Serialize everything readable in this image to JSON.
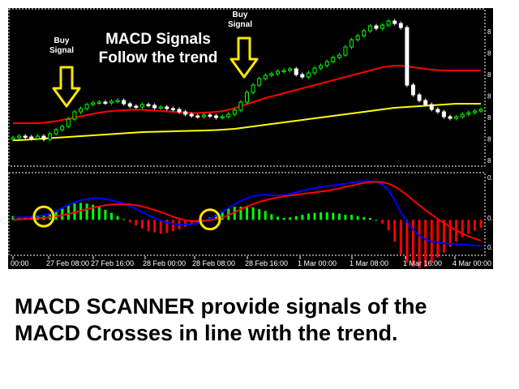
{
  "annotations": {
    "buy_signal_1": [
      "Buy",
      "Signal"
    ],
    "buy_signal_2": [
      "Buy",
      "Signal"
    ],
    "headline": [
      "MACD Signals",
      "Follow the trend"
    ]
  },
  "caption": [
    "MACD SCANNER provide signals of the",
    "MACD Crosses in line with the trend."
  ],
  "time_axis": [
    "00:00",
    "27 Feb 08:00",
    "27 Feb 16:00",
    "28 Feb 00:00",
    "28 Feb 08:00",
    "28 Feb 16:00",
    "1 Mar 00:00",
    "1 Mar 08:00",
    "1 Mar 16:00",
    "4 Mar 00:00"
  ],
  "price_axis": [
    "8",
    "8",
    "8",
    "8",
    "8",
    "8",
    "8"
  ],
  "macd_axis": [
    "0.",
    "0.",
    "0."
  ],
  "colors": {
    "background": "#000000",
    "bull_candle": "#00ff00",
    "bear_candle": "#ffffff",
    "ma_fast": "#ff0000",
    "ma_slow": "#ffff00",
    "macd_line": "#0000ff",
    "signal_line": "#ff0000",
    "hist_positive": "#00ff00",
    "hist_negative": "#ff0000",
    "highlight": "#ffe600",
    "grid": "#ffffff"
  },
  "chart_data": {
    "type": "candlestick",
    "price": {
      "close": [
        3,
        3.2,
        3.1,
        2.9,
        3.2,
        2.8,
        3.5,
        4,
        4.4,
        5.3,
        6.2,
        6.6,
        7.1,
        7.3,
        7.4,
        7.3,
        7.5,
        7.6,
        7.2,
        6.9,
        6.8,
        7.1,
        7,
        6.7,
        6.8,
        6.6,
        6.5,
        6.2,
        5.9,
        5.7,
        5.6,
        5.8,
        5.7,
        5.5,
        5.6,
        5.9,
        6.4,
        7.4,
        8.6,
        9.5,
        10.3,
        10.7,
        10.9,
        11.2,
        11.3,
        11.5,
        10.8,
        10.5,
        11,
        11.6,
        11.9,
        12.4,
        12.9,
        13.2,
        14.2,
        15.1,
        15.6,
        16.2,
        16.8,
        16.5,
        16.9,
        17.4,
        17.1,
        16.6,
        9.5,
        8.3,
        7.6,
        7.1,
        6.5,
        6.2,
        5.6,
        5.4,
        5.6,
        5.9,
        6.1,
        6.3,
        6.5
      ],
      "fast_ma": [
        4.8,
        4.8,
        4.8,
        4.8,
        4.8,
        4.85,
        4.95,
        5.05,
        5.2,
        5.35,
        5.5,
        5.65,
        5.8,
        5.95,
        6.1,
        6.2,
        6.3,
        6.35,
        6.4,
        6.45,
        6.45,
        6.45,
        6.4,
        6.35,
        6.3,
        6.25,
        6.2,
        6.15,
        6.1,
        6.05,
        6.05,
        6.1,
        6.15,
        6.2,
        6.3,
        6.45,
        6.65,
        6.9,
        7.15,
        7.4,
        7.65,
        7.9,
        8.1,
        8.3,
        8.5,
        8.7,
        8.9,
        9.1,
        9.3,
        9.5,
        9.7,
        9.9,
        10.1,
        10.3,
        10.5,
        10.7,
        10.9,
        11.1,
        11.3,
        11.5,
        11.7,
        11.8,
        11.9,
        11.9,
        11.8,
        11.7,
        11.6,
        11.5,
        11.4,
        11.35,
        11.3,
        11.3,
        11.3,
        11.3,
        11.3,
        11.3,
        11.3
      ],
      "slow_ma": [
        2.7,
        2.7,
        2.75,
        2.8,
        2.85,
        2.9,
        2.95,
        3,
        3.05,
        3.1,
        3.15,
        3.2,
        3.25,
        3.3,
        3.35,
        3.4,
        3.45,
        3.5,
        3.55,
        3.6,
        3.65,
        3.7,
        3.72,
        3.74,
        3.76,
        3.78,
        3.8,
        3.82,
        3.84,
        3.86,
        3.88,
        3.9,
        3.92,
        3.95,
        4,
        4.05,
        4.1,
        4.2,
        4.3,
        4.4,
        4.5,
        4.6,
        4.7,
        4.8,
        4.9,
        5,
        5.1,
        5.2,
        5.3,
        5.4,
        5.5,
        5.6,
        5.7,
        5.8,
        5.9,
        6,
        6.1,
        6.2,
        6.3,
        6.4,
        6.5,
        6.6,
        6.7,
        6.75,
        6.8,
        6.85,
        6.9,
        6.95,
        7,
        7.05,
        7.1,
        7.15,
        7.2,
        7.2,
        7.2,
        7.2,
        7.2
      ]
    },
    "macd": {
      "macd_line": [
        0.06,
        0.06,
        0.07,
        0.08,
        0.1,
        0.12,
        0.16,
        0.22,
        0.3,
        0.38,
        0.45,
        0.5,
        0.53,
        0.55,
        0.55,
        0.53,
        0.5,
        0.46,
        0.41,
        0.35,
        0.28,
        0.2,
        0.12,
        0.05,
        -0.02,
        -0.07,
        -0.1,
        -0.12,
        -0.12,
        -0.11,
        -0.08,
        -0.03,
        0.03,
        0.1,
        0.2,
        0.3,
        0.4,
        0.48,
        0.55,
        0.6,
        0.63,
        0.64,
        0.63,
        0.62,
        0.63,
        0.66,
        0.7,
        0.74,
        0.78,
        0.81,
        0.84,
        0.86,
        0.88,
        0.9,
        0.92,
        0.95,
        0.97,
        0.98,
        0.99,
        0.97,
        0.9,
        0.75,
        0.5,
        0.2,
        -0.05,
        -0.25,
        -0.4,
        -0.5,
        -0.55,
        -0.58,
        -0.6,
        -0.61,
        -0.62,
        -0.63,
        -0.64,
        -0.65,
        -0.66
      ],
      "signal_line": [
        0,
        0.01,
        0.02,
        0.03,
        0.04,
        0.05,
        0.07,
        0.09,
        0.12,
        0.15,
        0.19,
        0.23,
        0.27,
        0.31,
        0.34,
        0.37,
        0.39,
        0.4,
        0.4,
        0.39,
        0.37,
        0.34,
        0.3,
        0.25,
        0.2,
        0.14,
        0.08,
        0.03,
        -0.01,
        -0.03,
        -0.04,
        -0.03,
        -0.01,
        0.02,
        0.06,
        0.12,
        0.19,
        0.27,
        0.34,
        0.4,
        0.46,
        0.5,
        0.54,
        0.57,
        0.6,
        0.62,
        0.64,
        0.66,
        0.68,
        0.7,
        0.72,
        0.74,
        0.77,
        0.8,
        0.84,
        0.87,
        0.91,
        0.94,
        0.96,
        0.97,
        0.96,
        0.92,
        0.85,
        0.75,
        0.63,
        0.5,
        0.37,
        0.25,
        0.13,
        0.02,
        -0.08,
        -0.18,
        -0.27,
        -0.35,
        -0.42,
        -0.48,
        -0.53
      ]
    }
  }
}
